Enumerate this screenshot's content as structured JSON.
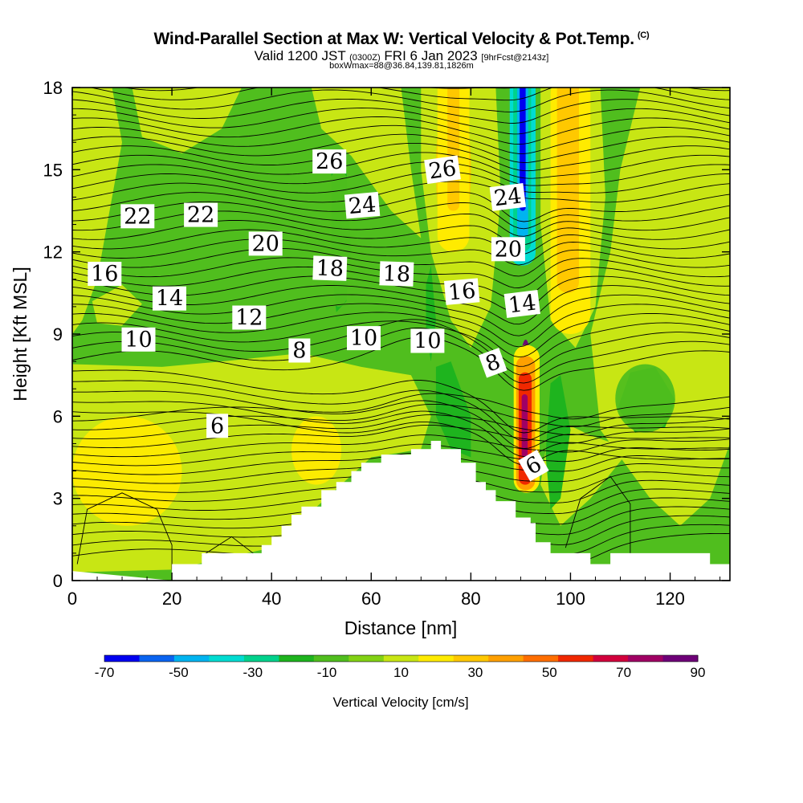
{
  "header": {
    "title": "Wind-Parallel Section at Max W: Vertical Velocity & Pot.Temp.",
    "copyright": "(C)",
    "valid_prefix": "Valid 1200 JST",
    "valid_utc": "(0300Z)",
    "valid_date": "FRI 6 Jan 2023",
    "forecast": "[9hrFcst@2143z]",
    "box_info": "boxWmax=88@36.84,139.81,1826m"
  },
  "chart_data": {
    "type": "contour",
    "title": "Wind-Parallel Section at Max W: Vertical Velocity & Pot.Temp.",
    "xlabel": "Distance [nm]",
    "ylabel": "Height [Kft MSL]",
    "xlim": [
      0,
      132
    ],
    "ylim": [
      0,
      18
    ],
    "x_ticks": [
      "0",
      "20",
      "40",
      "60",
      "80",
      "100",
      "120"
    ],
    "y_ticks": [
      "0",
      "3",
      "6",
      "9",
      "12",
      "15",
      "18"
    ],
    "colorbar": {
      "label": "Vertical Velocity [cm/s]",
      "tick_labels": [
        "-70",
        "-50",
        "-30",
        "-10",
        "10",
        "30",
        "50",
        "70",
        "90"
      ],
      "levels": [
        -70,
        -60,
        -50,
        -40,
        -30,
        -20,
        -10,
        0,
        10,
        20,
        30,
        40,
        50,
        60,
        70,
        80,
        90
      ],
      "colors": [
        "#0000f0",
        "#0a64f0",
        "#00b4f0",
        "#00dcd2",
        "#00d28c",
        "#1eb41e",
        "#50be1e",
        "#82d214",
        "#c8e614",
        "#ffeb00",
        "#ffc800",
        "#ffa000",
        "#ff6e00",
        "#f02800",
        "#d2003c",
        "#a00064",
        "#6e0078"
      ]
    },
    "theta_contour_labels": [
      {
        "text": "26",
        "x": 51.6,
        "y": 15.3,
        "angle": 0
      },
      {
        "text": "26",
        "x": 74.3,
        "y": 15.0,
        "angle": -8
      },
      {
        "text": "24",
        "x": 58.2,
        "y": 13.7,
        "angle": -5
      },
      {
        "text": "24",
        "x": 87.4,
        "y": 14.0,
        "angle": -7
      },
      {
        "text": "22",
        "x": 13.1,
        "y": 13.3,
        "angle": 0
      },
      {
        "text": "22",
        "x": 25.8,
        "y": 13.35,
        "angle": 0
      },
      {
        "text": "20",
        "x": 38.8,
        "y": 12.3,
        "angle": 0
      },
      {
        "text": "20",
        "x": 87.5,
        "y": 12.1,
        "angle": 0
      },
      {
        "text": "18",
        "x": 51.7,
        "y": 11.4,
        "angle": 2
      },
      {
        "text": "18",
        "x": 65.1,
        "y": 11.2,
        "angle": 2
      },
      {
        "text": "16",
        "x": 6.5,
        "y": 11.2,
        "angle": 0
      },
      {
        "text": "16",
        "x": 78.2,
        "y": 10.55,
        "angle": -5
      },
      {
        "text": "14",
        "x": 19.5,
        "y": 10.3,
        "angle": 0
      },
      {
        "text": "14",
        "x": 90.3,
        "y": 10.1,
        "angle": -7
      },
      {
        "text": "12",
        "x": 35.5,
        "y": 9.6,
        "angle": 0
      },
      {
        "text": "10",
        "x": 13.3,
        "y": 8.8,
        "angle": 0
      },
      {
        "text": "10",
        "x": 58.5,
        "y": 8.85,
        "angle": 0
      },
      {
        "text": "10",
        "x": 71.3,
        "y": 8.75,
        "angle": 0
      },
      {
        "text": "8",
        "x": 45.6,
        "y": 8.4,
        "angle": 0
      },
      {
        "text": "8",
        "x": 84.4,
        "y": 7.95,
        "angle": -20
      },
      {
        "text": "6",
        "x": 29.1,
        "y": 5.65,
        "angle": 0
      },
      {
        "text": "6",
        "x": 92.6,
        "y": 4.2,
        "angle": -30
      }
    ],
    "vertical_velocity_features": [
      {
        "kind": "updraft-max",
        "value_cm_s": 88,
        "x": 91,
        "y_range": [
          3.5,
          8.8
        ]
      },
      {
        "kind": "updraft",
        "value_cm_s": 30,
        "x_range": [
          96,
          104
        ],
        "y_range": [
          9.0,
          18
        ]
      },
      {
        "kind": "updraft",
        "value_cm_s": 30,
        "x_range": [
          73,
          80
        ],
        "y_range": [
          12.0,
          18
        ]
      },
      {
        "kind": "downdraft",
        "value_cm_s": -70,
        "x": 90,
        "y_range": [
          12.5,
          18
        ]
      },
      {
        "kind": "weak-updraft",
        "value_cm_s": 15,
        "x_range": [
          0,
          22
        ],
        "y_range": [
          2.0,
          6.0
        ]
      },
      {
        "kind": "weak-updraft",
        "value_cm_s": 15,
        "x_range": [
          44,
          54
        ],
        "y_range": [
          3.5,
          6.0
        ]
      },
      {
        "kind": "downdraft",
        "value_cm_s": -15,
        "x_range": [
          50,
          57
        ],
        "y_range": [
          10.0,
          15.0
        ]
      },
      {
        "kind": "downdraft",
        "value_cm_s": -15,
        "x_range": [
          109,
          121
        ],
        "y_range": [
          5.4,
          7.9
        ]
      }
    ],
    "terrain_top_kft": [
      [
        0,
        0
      ],
      [
        20,
        0.6
      ],
      [
        26,
        1.0
      ],
      [
        36,
        1.0
      ],
      [
        38,
        1.3
      ],
      [
        40,
        1.6
      ],
      [
        42,
        2.0
      ],
      [
        44,
        2.4
      ],
      [
        46,
        2.7
      ],
      [
        50,
        3.3
      ],
      [
        53,
        3.6
      ],
      [
        56,
        4.0
      ],
      [
        58,
        4.3
      ],
      [
        62,
        4.6
      ],
      [
        68,
        4.8
      ],
      [
        72,
        5.1
      ],
      [
        74,
        4.8
      ],
      [
        78,
        4.3
      ],
      [
        81,
        3.6
      ],
      [
        83,
        3.3
      ],
      [
        85,
        2.9
      ],
      [
        89,
        2.3
      ],
      [
        92,
        2.1
      ],
      [
        93,
        1.4
      ],
      [
        96,
        1.0
      ],
      [
        104,
        0.6
      ],
      [
        108,
        1.0
      ],
      [
        126,
        1.0
      ],
      [
        128,
        0.6
      ],
      [
        132,
        0.6
      ]
    ]
  }
}
